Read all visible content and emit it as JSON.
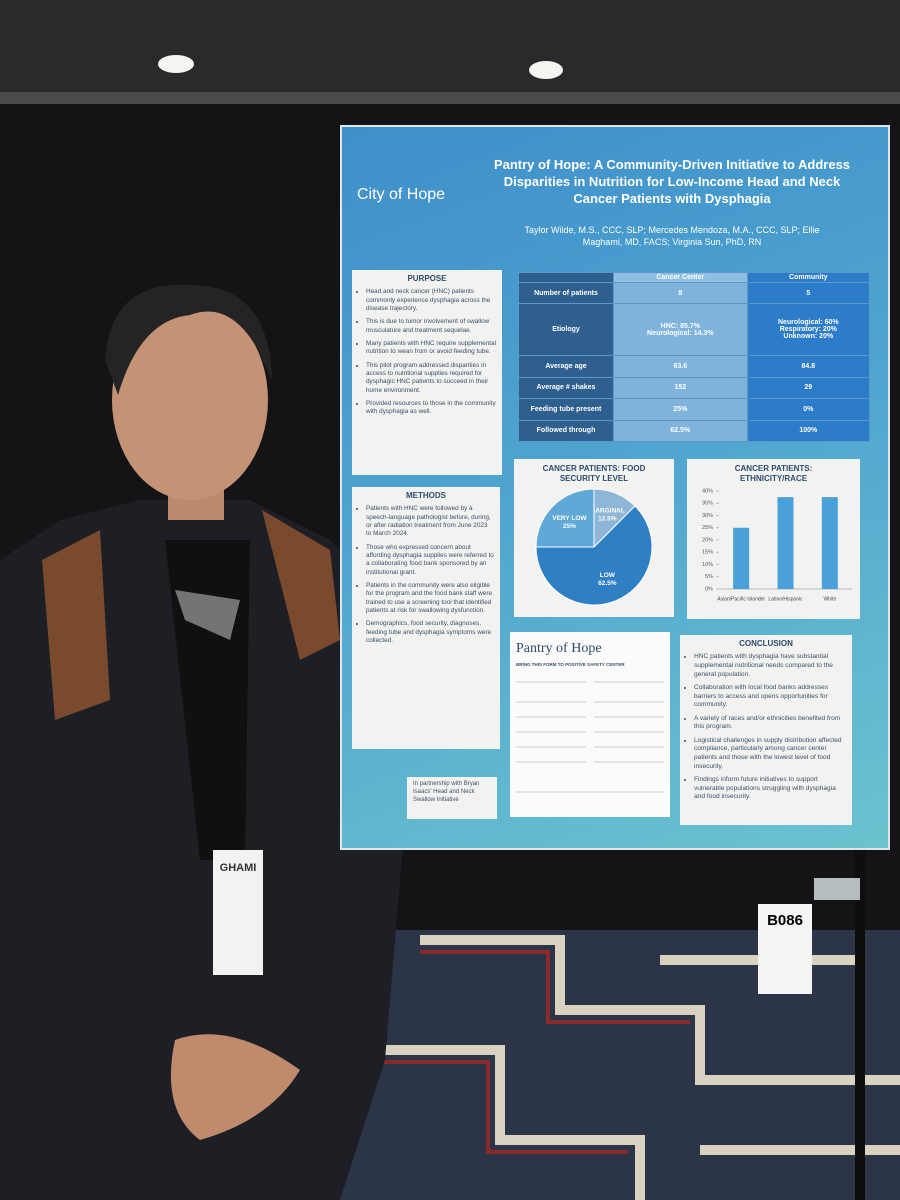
{
  "poster": {
    "logo": "City of Hope",
    "title": "Pantry of Hope: A Community-Driven Initiative to Address Disparities in Nutrition for Low-Income Head and Neck Cancer Patients with Dysphagia",
    "authors": "Taylor Wilde, M.S., CCC, SLP; Mercedes Mendoza, M.A., CCC, SLP; Ellie Maghami, MD, FACS; Virginia Sun, PhD, RN",
    "purpose": {
      "heading": "PURPOSE",
      "items": [
        "Head and neck cancer (HNC) patients commonly experience dysphagia across the disease trajectory.",
        "This is due to tumor involvement of swallow musculature and treatment sequelae.",
        "Many patients with HNC require supplemental nutrition to wean from or avoid feeding tube.",
        "This pilot program addressed disparities in access to nutritional supplies required for dysphagic HNC patients to succeed in their home environment.",
        "Provided resources to those in the community with dysphagia as well."
      ]
    },
    "methods": {
      "heading": "METHODS",
      "items": [
        "Patients with HNC were followed by a speech-language pathologist before, during, or after radiation treatment from June 2023 to March 2024.",
        "Those who expressed concern about affording dysphagia supplies were referred to a collaborating food bank sponsored by an institutional grant.",
        "Patients in the community were also eligible for the program and the food bank staff were trained to use a screening tool that identified patients at risk for swallowing dysfunction.",
        "Demographics, food security, diagnoses, feeding tube and dysphagia symptoms were collected."
      ]
    },
    "partnership": "In partnership with Bryan Isaacs' Head and Neck Swallow Initiative",
    "table": {
      "columns": [
        "Cancer Center",
        "Community"
      ],
      "rows": [
        [
          "Number of patients",
          "8",
          "5"
        ],
        [
          "Etiology",
          "HNC: 85.7%\nNeurological: 14.3%",
          "Neurological: 60%\nRespiratory: 20%\nUnknown: 20%"
        ],
        [
          "Average age",
          "63.6",
          "84.8"
        ],
        [
          "Average # shakes",
          "152",
          "29"
        ],
        [
          "Feeding tube present",
          "25%",
          "0%"
        ],
        [
          "Followed through",
          "62.5%",
          "100%"
        ]
      ]
    },
    "form": {
      "title": "Pantry of Hope",
      "heading": "BRING THIS FORM TO POSITIVE SAFETY CENTER"
    },
    "conclusion": {
      "heading": "CONCLUSION",
      "items": [
        "HNC patients with dysphagia have substantial supplemental nutritional needs compared to the general population.",
        "Collaboration with local food banks addresses barriers to access and opens opportunities for community.",
        "A variety of races and/or ethnicities benefited from this program.",
        "Logistical challenges in supply distribution affected compliance, particularly among cancer center patients and those with the lowest level of food insecurity.",
        "Findings inform future initiatives to support vulnerable populations struggling with dysphagia and food insecurity."
      ]
    }
  },
  "chart_data": [
    {
      "type": "pie",
      "title": "CANCER PATIENTS: FOOD SECURITY LEVEL",
      "categories": [
        "MARGINAL",
        "LOW",
        "VERY LOW"
      ],
      "values": [
        12.5,
        62.5,
        25
      ],
      "value_labels": [
        "12.5%",
        "62.5%",
        "25%"
      ],
      "colors": [
        "#8eb6d6",
        "#2f7fc4",
        "#5fa9d6"
      ]
    },
    {
      "type": "bar",
      "title": "CANCER PATIENTS: ETHNICITY/RACE",
      "categories": [
        "Asian/Pacific Islander",
        "Latino/Hispanic",
        "White"
      ],
      "values": [
        25,
        37.5,
        37.5
      ],
      "color": "#4aa0d8",
      "ylim": [
        0,
        40
      ],
      "yticks": [
        {
          "value": 0,
          "label": "0%"
        },
        {
          "value": 5,
          "label": "5%"
        },
        {
          "value": 10,
          "label": "10%"
        },
        {
          "value": 15,
          "label": "15%"
        },
        {
          "value": 20,
          "label": "20%"
        },
        {
          "value": 25,
          "label": "25%"
        },
        {
          "value": 30,
          "label": "30%"
        },
        {
          "value": 35,
          "label": "35%"
        },
        {
          "value": 40,
          "label": "40%"
        }
      ]
    }
  ],
  "booth": {
    "number": "B086"
  },
  "badge": {
    "name": "GHAMI"
  }
}
